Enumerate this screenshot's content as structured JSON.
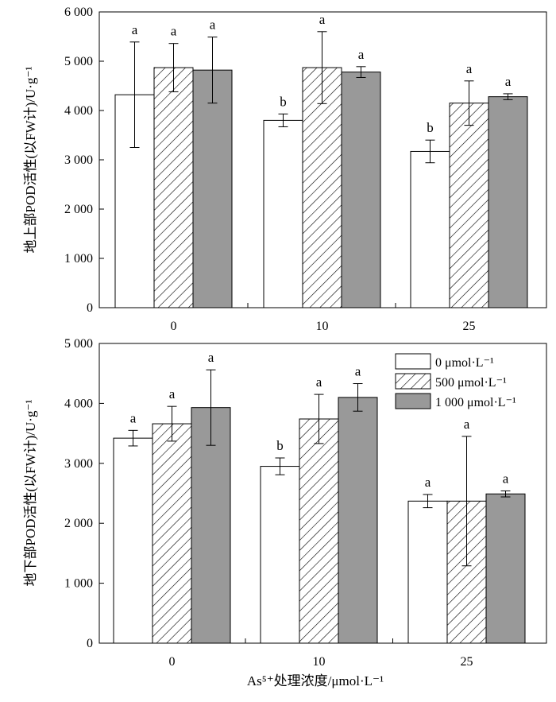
{
  "chart_data": [
    {
      "type": "bar",
      "panel": "top",
      "categories": [
        "0",
        "10",
        "25"
      ],
      "ylabel": "地上部POD活性(以FW计)/U·g⁻¹",
      "xlabel": "",
      "ylim": [
        0,
        6000
      ],
      "yticks": [
        0,
        1000,
        2000,
        3000,
        4000,
        5000,
        6000
      ],
      "ytick_labels": [
        "0",
        "1 000",
        "2 000",
        "3 000",
        "4 000",
        "5 000",
        "6 000"
      ],
      "grid": false,
      "series": [
        {
          "name": "0 μmol·L⁻¹",
          "fill": "#ffffff",
          "pattern": "none",
          "values": [
            4320,
            3800,
            3170
          ],
          "errors": [
            1070,
            130,
            230
          ],
          "sig": [
            "a",
            "b",
            "b"
          ]
        },
        {
          "name": "500 μmol·L⁻¹",
          "fill": "#ffffff",
          "pattern": "hatch",
          "values": [
            4870,
            4870,
            4150
          ],
          "errors": [
            490,
            730,
            450
          ],
          "sig": [
            "a",
            "a",
            "a"
          ]
        },
        {
          "name": "1 000 μmol·L⁻¹",
          "fill": "#999999",
          "pattern": "none",
          "values": [
            4820,
            4780,
            4280
          ],
          "errors": [
            670,
            110,
            60
          ],
          "sig": [
            "a",
            "a",
            "a"
          ]
        }
      ]
    },
    {
      "type": "bar",
      "panel": "bottom",
      "categories": [
        "0",
        "10",
        "25"
      ],
      "ylabel": "地下部POD活性(以FW计)/U·g⁻¹",
      "xlabel": "As⁵⁺处理浓度/μmol·L⁻¹",
      "ylim": [
        0,
        5000
      ],
      "yticks": [
        0,
        1000,
        2000,
        3000,
        4000,
        5000
      ],
      "ytick_labels": [
        "0",
        "1 000",
        "2 000",
        "3 000",
        "4 000",
        "5 000"
      ],
      "grid": false,
      "legend_position": "top-right",
      "series": [
        {
          "name": "0 μmol·L⁻¹",
          "fill": "#ffffff",
          "pattern": "none",
          "values": [
            3420,
            2950,
            2370
          ],
          "errors": [
            130,
            140,
            110
          ],
          "sig": [
            "a",
            "b",
            "a"
          ]
        },
        {
          "name": "500 μmol·L⁻¹",
          "fill": "#ffffff",
          "pattern": "hatch",
          "values": [
            3660,
            3740,
            2370
          ],
          "errors": [
            290,
            410,
            1080
          ],
          "sig": [
            "a",
            "a",
            "a"
          ]
        },
        {
          "name": "1 000 μmol·L⁻¹",
          "fill": "#999999",
          "pattern": "none",
          "values": [
            3930,
            4100,
            2490
          ],
          "errors": [
            630,
            230,
            50
          ],
          "sig": [
            "a",
            "a",
            "a"
          ]
        }
      ]
    }
  ]
}
